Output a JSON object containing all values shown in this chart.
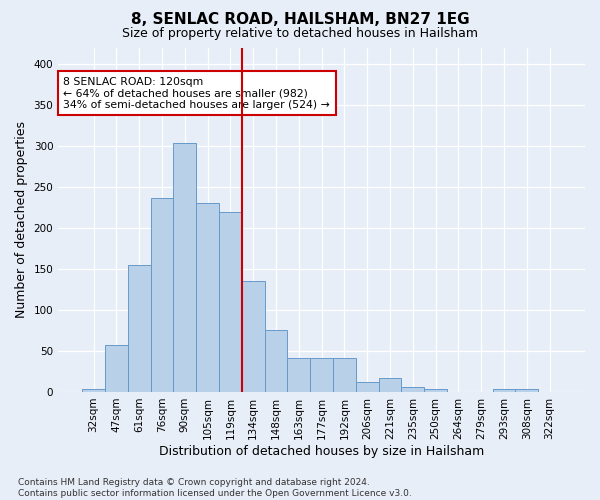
{
  "title1": "8, SENLAC ROAD, HAILSHAM, BN27 1EG",
  "title2": "Size of property relative to detached houses in Hailsham",
  "xlabel": "Distribution of detached houses by size in Hailsham",
  "ylabel": "Number of detached properties",
  "categories": [
    "32sqm",
    "47sqm",
    "61sqm",
    "76sqm",
    "90sqm",
    "105sqm",
    "119sqm",
    "134sqm",
    "148sqm",
    "163sqm",
    "177sqm",
    "192sqm",
    "206sqm",
    "221sqm",
    "235sqm",
    "250sqm",
    "264sqm",
    "279sqm",
    "293sqm",
    "308sqm",
    "322sqm"
  ],
  "values": [
    4,
    57,
    155,
    237,
    303,
    231,
    219,
    135,
    75,
    41,
    42,
    42,
    12,
    17,
    6,
    3,
    0,
    0,
    4,
    3,
    0
  ],
  "bar_color": "#b8d0e8",
  "bar_edge_color": "#6699cc",
  "vline_pos": 6.5,
  "vline_color": "#cc0000",
  "annotation_text": "8 SENLAC ROAD: 120sqm\n← 64% of detached houses are smaller (982)\n34% of semi-detached houses are larger (524) →",
  "annotation_box_color": "#ffffff",
  "annotation_box_edge": "#cc0000",
  "ylim": [
    0,
    420
  ],
  "yticks": [
    0,
    50,
    100,
    150,
    200,
    250,
    300,
    350,
    400
  ],
  "footer": "Contains HM Land Registry data © Crown copyright and database right 2024.\nContains public sector information licensed under the Open Government Licence v3.0.",
  "bg_color": "#e8eef8",
  "plot_bg_color": "#e8eef8",
  "title1_fontsize": 11,
  "title2_fontsize": 9,
  "ylabel_fontsize": 9,
  "xlabel_fontsize": 9,
  "tick_fontsize": 7.5,
  "footer_fontsize": 6.5
}
